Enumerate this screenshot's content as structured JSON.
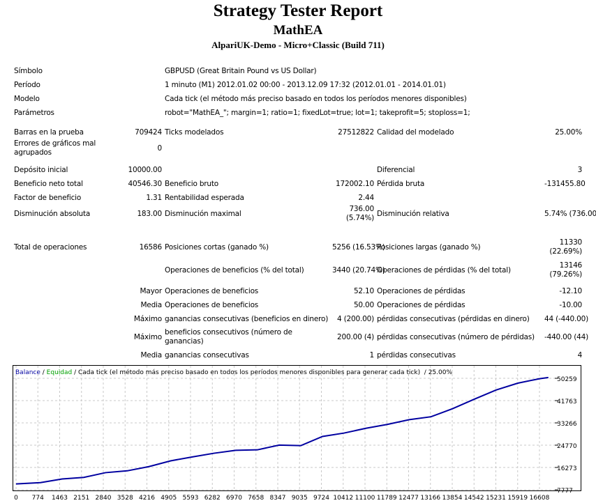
{
  "header": {
    "title": "Strategy Tester Report",
    "ea": "MathEA",
    "server": "AlpariUK-Demo - Micro+Classic (Build 711)"
  },
  "info": {
    "symbol_label": "Símbolo",
    "symbol": "GBPUSD (Great Britain Pound vs US Dollar)",
    "period_label": "Período",
    "period": "1 minuto (M1) 2012.01.02 00:00 - 2013.12.09 17:32 (2012.01.01 - 2014.01.01)",
    "model_label": "Modelo",
    "model": "Cada tick (el método más preciso basado en todos los períodos menores disponibles)",
    "params_label": "Parámetros",
    "params": "robot=\"MathEA_\"; margin=1; ratio=1; fixedLot=true; lot=1; takeprofit=5; stoploss=1;"
  },
  "stats": {
    "bars_label": "Barras en la prueba",
    "bars": "709424",
    "ticks_label": "Ticks modelados",
    "ticks": "27512822",
    "quality_label": "Calidad del modelado",
    "quality": "25.00%",
    "errors_label": "Errores de gráficos mal agrupados",
    "errors": "0",
    "deposit_label": "Depósito inicial",
    "deposit": "10000.00",
    "spread_label": "Diferencial",
    "spread": "3",
    "net_label": "Beneficio neto total",
    "net": "40546.30",
    "gross_profit_label": "Beneficio bruto",
    "gross_profit": "172002.10",
    "gross_loss_label": "Pérdida bruta",
    "gross_loss": "-131455.80",
    "pf_label": "Factor de beneficio",
    "pf": "1.31",
    "payoff_label": "Rentabilidad esperada",
    "payoff": "2.44",
    "abs_dd_label": "Disminución absoluta",
    "abs_dd": "183.00",
    "max_dd_label": "Disminución maximal",
    "max_dd": "736.00 (5.74%)",
    "rel_dd_label": "Disminución relativa",
    "rel_dd": "5.74% (736.00)",
    "total_label": "Total de operaciones",
    "total": "16586",
    "short_label": "Posiciones cortas (ganado %)",
    "short": "5256 (16.53%)",
    "long_label": "Posiciones largas (ganado %)",
    "long": "11330 (22.69%)",
    "profit_trades_label": "Operaciones de beneficios (% del total)",
    "profit_trades": "3440 (20.74%)",
    "loss_trades_label": "Operaciones de pérdidas (% del total)",
    "loss_trades": "13146 (79.26%)",
    "largest": "Mayor",
    "largest_profit_label": "Operaciones de beneficios",
    "largest_profit": "52.10",
    "largest_loss_label": "Operaciones de pérdidas",
    "largest_loss": "-12.10",
    "average": "Media",
    "avg_profit_label": "Operaciones de beneficios",
    "avg_profit": "50.00",
    "avg_loss_label": "Operaciones de pérdidas",
    "avg_loss": "-10.00",
    "maximum": "Máximo",
    "max_cons_wins_label": "ganancias consecutivas (beneficios en dinero)",
    "max_cons_wins": "4 (200.00)",
    "max_cons_losses_label": "pérdidas consecutivas (pérdidas en dinero)",
    "max_cons_losses": "44 (-440.00)",
    "maximal": "Máximo",
    "max_cons_profit_label": "beneficios consecutivos (número de ganancias)",
    "max_cons_profit": "200.00 (4)",
    "max_cons_loss_label": "pérdidas consecutivas (número de pérdidas)",
    "max_cons_loss": "-440.00 (44)",
    "average2": "Media",
    "avg_cons_wins_label": "ganancias consecutivas",
    "avg_cons_wins": "1",
    "avg_cons_losses_label": "pérdidas consecutivas",
    "avg_cons_losses": "4"
  },
  "chart_data": {
    "type": "line",
    "legend": {
      "balance": "Balance",
      "sep1": " / ",
      "equity": "Equidad",
      "rest": " / Cada tick (el método más preciso basado en todos los períodos menores disponibles para generar cada tick)  / 25.00%"
    },
    "colors": {
      "balance": "#0000a0",
      "equity": "#00a000",
      "grid": "#c8c8c8"
    },
    "x_ticks": [
      0,
      774,
      1463,
      2151,
      2840,
      3528,
      4216,
      4905,
      5593,
      6282,
      6970,
      7658,
      8347,
      9035,
      9724,
      10412,
      11100,
      11789,
      12477,
      13166,
      13854,
      14542,
      15231,
      15919,
      16608
    ],
    "y_ticks": [
      50259,
      41763,
      33266,
      24770,
      16273,
      7777
    ],
    "xlim": [
      0,
      16608
    ],
    "ylim": [
      7777,
      50259
    ],
    "series": [
      {
        "name": "Balance",
        "x": [
          0,
          774,
          1463,
          2151,
          2840,
          3528,
          4216,
          4905,
          5593,
          6282,
          6970,
          7658,
          8347,
          9035,
          9724,
          10412,
          11100,
          11789,
          12477,
          13166,
          13854,
          14542,
          15231,
          15919,
          16608,
          16900
        ],
        "y": [
          10000,
          10500,
          11900,
          12500,
          14300,
          15000,
          16600,
          18800,
          20300,
          21700,
          22800,
          23000,
          24800,
          24600,
          28100,
          29400,
          31200,
          32700,
          34500,
          35600,
          38700,
          42300,
          45800,
          48400,
          50100,
          50546
        ]
      }
    ]
  }
}
